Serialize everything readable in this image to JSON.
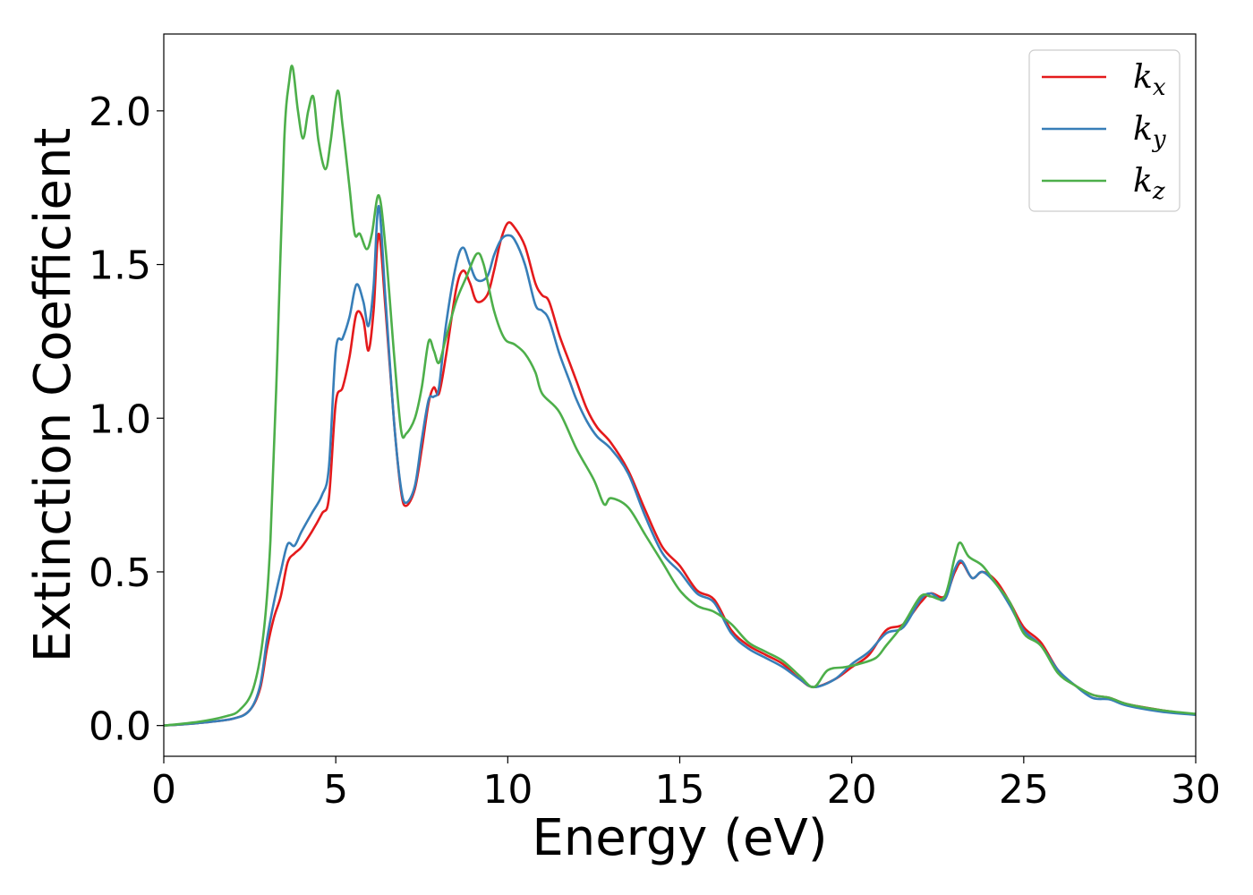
{
  "chart_data": {
    "type": "line",
    "title": "",
    "xlabel": "Energy (eV)",
    "ylabel": "Extinction Coefficient",
    "xlim": [
      0,
      30
    ],
    "ylim": [
      -0.1,
      2.25
    ],
    "xticks": [
      0,
      5,
      10,
      15,
      20,
      25,
      30
    ],
    "xtick_labels": [
      "0",
      "5",
      "10",
      "15",
      "20",
      "25",
      "30"
    ],
    "yticks": [
      0.0,
      0.5,
      1.0,
      1.5,
      2.0
    ],
    "ytick_labels": [
      "0.0",
      "0.5",
      "1.0",
      "1.5",
      "2.0"
    ],
    "grid": false,
    "legend_position": "top-right",
    "series": [
      {
        "name": "k_x",
        "legend_main": "k",
        "legend_sub": "x",
        "color": "#e41a1c",
        "points": [
          [
            0,
            0.0
          ],
          [
            1,
            0.008
          ],
          [
            2,
            0.022
          ],
          [
            2.5,
            0.05
          ],
          [
            2.8,
            0.12
          ],
          [
            3.0,
            0.25
          ],
          [
            3.2,
            0.35
          ],
          [
            3.4,
            0.42
          ],
          [
            3.6,
            0.53
          ],
          [
            3.8,
            0.56
          ],
          [
            4.0,
            0.58
          ],
          [
            4.3,
            0.63
          ],
          [
            4.6,
            0.69
          ],
          [
            4.8,
            0.74
          ],
          [
            5.0,
            1.05
          ],
          [
            5.2,
            1.1
          ],
          [
            5.4,
            1.2
          ],
          [
            5.6,
            1.34
          ],
          [
            5.8,
            1.32
          ],
          [
            5.95,
            1.22
          ],
          [
            6.1,
            1.35
          ],
          [
            6.25,
            1.6
          ],
          [
            6.45,
            1.35
          ],
          [
            6.7,
            0.98
          ],
          [
            6.9,
            0.76
          ],
          [
            7.05,
            0.715
          ],
          [
            7.3,
            0.77
          ],
          [
            7.5,
            0.9
          ],
          [
            7.7,
            1.05
          ],
          [
            7.85,
            1.1
          ],
          [
            8.0,
            1.08
          ],
          [
            8.2,
            1.2
          ],
          [
            8.5,
            1.42
          ],
          [
            8.7,
            1.48
          ],
          [
            8.9,
            1.44
          ],
          [
            9.1,
            1.38
          ],
          [
            9.4,
            1.4
          ],
          [
            9.6,
            1.48
          ],
          [
            9.8,
            1.58
          ],
          [
            10.0,
            1.635
          ],
          [
            10.2,
            1.62
          ],
          [
            10.5,
            1.56
          ],
          [
            10.8,
            1.44
          ],
          [
            11.0,
            1.4
          ],
          [
            11.2,
            1.38
          ],
          [
            11.5,
            1.27
          ],
          [
            11.8,
            1.18
          ],
          [
            12.0,
            1.12
          ],
          [
            12.3,
            1.03
          ],
          [
            12.6,
            0.97
          ],
          [
            13.0,
            0.92
          ],
          [
            13.5,
            0.83
          ],
          [
            14.0,
            0.7
          ],
          [
            14.5,
            0.58
          ],
          [
            15.0,
            0.52
          ],
          [
            15.5,
            0.44
          ],
          [
            16.0,
            0.41
          ],
          [
            16.5,
            0.31
          ],
          [
            17.0,
            0.26
          ],
          [
            17.5,
            0.23
          ],
          [
            18.0,
            0.2
          ],
          [
            18.5,
            0.15
          ],
          [
            18.9,
            0.125
          ],
          [
            19.5,
            0.15
          ],
          [
            20.0,
            0.19
          ],
          [
            20.5,
            0.23
          ],
          [
            21.0,
            0.31
          ],
          [
            21.5,
            0.33
          ],
          [
            22.0,
            0.4
          ],
          [
            22.3,
            0.43
          ],
          [
            22.7,
            0.42
          ],
          [
            23.0,
            0.5
          ],
          [
            23.2,
            0.53
          ],
          [
            23.5,
            0.48
          ],
          [
            23.8,
            0.5
          ],
          [
            24.2,
            0.47
          ],
          [
            24.6,
            0.4
          ],
          [
            25.0,
            0.32
          ],
          [
            25.5,
            0.27
          ],
          [
            26.0,
            0.18
          ],
          [
            26.5,
            0.13
          ],
          [
            27.0,
            0.1
          ],
          [
            27.5,
            0.09
          ],
          [
            28.0,
            0.07
          ],
          [
            29.0,
            0.05
          ],
          [
            30.0,
            0.035
          ]
        ]
      },
      {
        "name": "k_y",
        "legend_main": "k",
        "legend_sub": "y",
        "color": "#377eb8",
        "points": [
          [
            0,
            0.0
          ],
          [
            1,
            0.008
          ],
          [
            2,
            0.022
          ],
          [
            2.5,
            0.05
          ],
          [
            2.8,
            0.13
          ],
          [
            3.0,
            0.28
          ],
          [
            3.2,
            0.4
          ],
          [
            3.4,
            0.5
          ],
          [
            3.6,
            0.59
          ],
          [
            3.8,
            0.585
          ],
          [
            4.0,
            0.63
          ],
          [
            4.3,
            0.69
          ],
          [
            4.6,
            0.75
          ],
          [
            4.8,
            0.84
          ],
          [
            5.0,
            1.22
          ],
          [
            5.2,
            1.26
          ],
          [
            5.4,
            1.33
          ],
          [
            5.6,
            1.435
          ],
          [
            5.8,
            1.38
          ],
          [
            5.95,
            1.3
          ],
          [
            6.1,
            1.43
          ],
          [
            6.25,
            1.69
          ],
          [
            6.45,
            1.38
          ],
          [
            6.7,
            0.98
          ],
          [
            6.9,
            0.77
          ],
          [
            7.05,
            0.725
          ],
          [
            7.3,
            0.78
          ],
          [
            7.5,
            0.93
          ],
          [
            7.7,
            1.06
          ],
          [
            7.85,
            1.07
          ],
          [
            8.0,
            1.1
          ],
          [
            8.2,
            1.3
          ],
          [
            8.5,
            1.5
          ],
          [
            8.7,
            1.555
          ],
          [
            8.9,
            1.5
          ],
          [
            9.1,
            1.45
          ],
          [
            9.4,
            1.46
          ],
          [
            9.6,
            1.53
          ],
          [
            9.8,
            1.58
          ],
          [
            10.0,
            1.595
          ],
          [
            10.2,
            1.58
          ],
          [
            10.5,
            1.5
          ],
          [
            10.8,
            1.37
          ],
          [
            11.0,
            1.35
          ],
          [
            11.2,
            1.32
          ],
          [
            11.5,
            1.21
          ],
          [
            11.8,
            1.12
          ],
          [
            12.0,
            1.06
          ],
          [
            12.3,
            0.99
          ],
          [
            12.6,
            0.94
          ],
          [
            13.0,
            0.9
          ],
          [
            13.5,
            0.82
          ],
          [
            14.0,
            0.68
          ],
          [
            14.5,
            0.56
          ],
          [
            15.0,
            0.5
          ],
          [
            15.5,
            0.43
          ],
          [
            16.0,
            0.4
          ],
          [
            16.5,
            0.3
          ],
          [
            17.0,
            0.25
          ],
          [
            17.5,
            0.22
          ],
          [
            18.0,
            0.19
          ],
          [
            18.5,
            0.15
          ],
          [
            18.9,
            0.125
          ],
          [
            19.5,
            0.15
          ],
          [
            20.0,
            0.2
          ],
          [
            20.5,
            0.24
          ],
          [
            21.0,
            0.3
          ],
          [
            21.5,
            0.32
          ],
          [
            22.0,
            0.41
          ],
          [
            22.3,
            0.43
          ],
          [
            22.7,
            0.41
          ],
          [
            23.0,
            0.51
          ],
          [
            23.2,
            0.535
          ],
          [
            23.5,
            0.48
          ],
          [
            23.8,
            0.5
          ],
          [
            24.2,
            0.46
          ],
          [
            24.6,
            0.39
          ],
          [
            25.0,
            0.31
          ],
          [
            25.5,
            0.26
          ],
          [
            26.0,
            0.18
          ],
          [
            26.5,
            0.13
          ],
          [
            27.0,
            0.09
          ],
          [
            27.5,
            0.085
          ],
          [
            28.0,
            0.065
          ],
          [
            29.0,
            0.045
          ],
          [
            30.0,
            0.035
          ]
        ]
      },
      {
        "name": "k_z",
        "legend_main": "k",
        "legend_sub": "z",
        "color": "#4daf4a",
        "points": [
          [
            0,
            0.0
          ],
          [
            1,
            0.012
          ],
          [
            1.8,
            0.03
          ],
          [
            2.2,
            0.05
          ],
          [
            2.6,
            0.12
          ],
          [
            2.9,
            0.3
          ],
          [
            3.1,
            0.6
          ],
          [
            3.3,
            1.2
          ],
          [
            3.5,
            1.9
          ],
          [
            3.65,
            2.1
          ],
          [
            3.75,
            2.14
          ],
          [
            3.9,
            2.0
          ],
          [
            4.05,
            1.91
          ],
          [
            4.2,
            2.0
          ],
          [
            4.35,
            2.045
          ],
          [
            4.5,
            1.9
          ],
          [
            4.7,
            1.81
          ],
          [
            4.85,
            1.9
          ],
          [
            5.05,
            2.065
          ],
          [
            5.2,
            1.95
          ],
          [
            5.4,
            1.75
          ],
          [
            5.55,
            1.6
          ],
          [
            5.7,
            1.6
          ],
          [
            5.9,
            1.55
          ],
          [
            6.05,
            1.6
          ],
          [
            6.25,
            1.725
          ],
          [
            6.45,
            1.55
          ],
          [
            6.7,
            1.2
          ],
          [
            6.9,
            0.96
          ],
          [
            7.05,
            0.95
          ],
          [
            7.3,
            1.0
          ],
          [
            7.5,
            1.1
          ],
          [
            7.7,
            1.25
          ],
          [
            7.85,
            1.22
          ],
          [
            8.0,
            1.18
          ],
          [
            8.2,
            1.26
          ],
          [
            8.5,
            1.38
          ],
          [
            8.8,
            1.46
          ],
          [
            9.1,
            1.535
          ],
          [
            9.3,
            1.5
          ],
          [
            9.6,
            1.35
          ],
          [
            9.9,
            1.26
          ],
          [
            10.2,
            1.24
          ],
          [
            10.5,
            1.21
          ],
          [
            10.8,
            1.15
          ],
          [
            11.0,
            1.08
          ],
          [
            11.5,
            1.02
          ],
          [
            12.0,
            0.9
          ],
          [
            12.5,
            0.8
          ],
          [
            12.8,
            0.72
          ],
          [
            13.0,
            0.74
          ],
          [
            13.5,
            0.71
          ],
          [
            14.0,
            0.62
          ],
          [
            14.5,
            0.53
          ],
          [
            15.0,
            0.44
          ],
          [
            15.5,
            0.39
          ],
          [
            16.0,
            0.37
          ],
          [
            16.5,
            0.33
          ],
          [
            17.0,
            0.27
          ],
          [
            17.5,
            0.24
          ],
          [
            18.0,
            0.21
          ],
          [
            18.5,
            0.16
          ],
          [
            18.9,
            0.125
          ],
          [
            19.3,
            0.18
          ],
          [
            19.8,
            0.19
          ],
          [
            20.2,
            0.2
          ],
          [
            20.7,
            0.22
          ],
          [
            21.0,
            0.26
          ],
          [
            21.5,
            0.33
          ],
          [
            22.0,
            0.42
          ],
          [
            22.3,
            0.42
          ],
          [
            22.7,
            0.42
          ],
          [
            23.0,
            0.55
          ],
          [
            23.15,
            0.595
          ],
          [
            23.4,
            0.55
          ],
          [
            23.8,
            0.52
          ],
          [
            24.2,
            0.46
          ],
          [
            24.6,
            0.4
          ],
          [
            25.0,
            0.3
          ],
          [
            25.5,
            0.26
          ],
          [
            26.0,
            0.17
          ],
          [
            26.5,
            0.13
          ],
          [
            27.0,
            0.1
          ],
          [
            27.5,
            0.09
          ],
          [
            28.0,
            0.07
          ],
          [
            29.0,
            0.05
          ],
          [
            30.0,
            0.038
          ]
        ]
      }
    ]
  }
}
